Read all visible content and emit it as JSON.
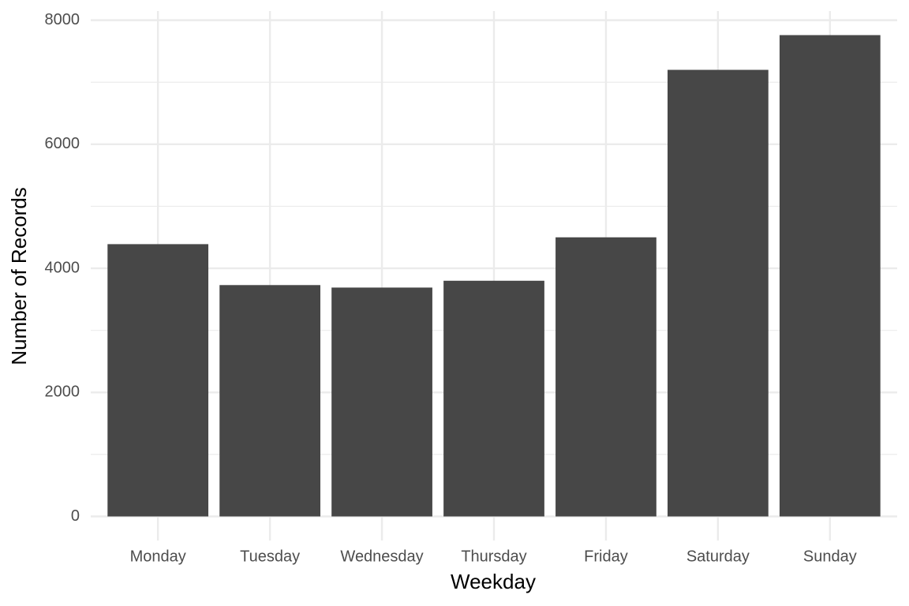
{
  "chart_data": {
    "type": "bar",
    "x_label": "Weekday",
    "y_label": "Number of Records",
    "categories": [
      "Monday",
      "Tuesday",
      "Wednesday",
      "Thursday",
      "Friday",
      "Saturday",
      "Sunday"
    ],
    "values": [
      4390,
      3730,
      3690,
      3800,
      4500,
      7200,
      7760
    ],
    "color": "#474747",
    "ylim": [
      -388,
      8148
    ],
    "yticks": [
      0,
      2000,
      4000,
      6000,
      8000
    ],
    "minor_yticks": [
      1000,
      3000,
      5000,
      7000
    ],
    "grid": true
  }
}
